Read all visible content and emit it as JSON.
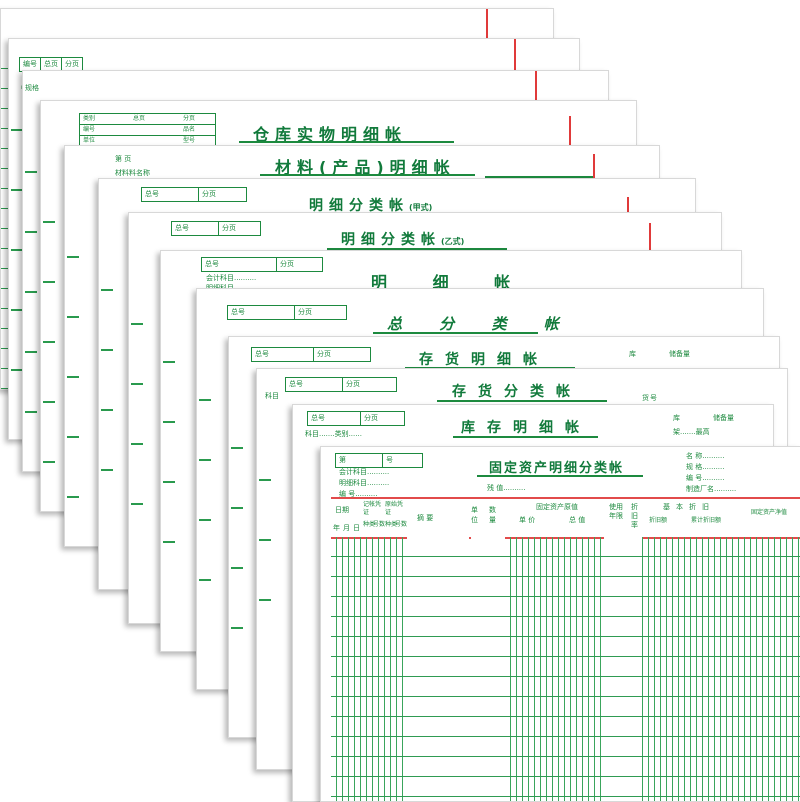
{
  "sheets": [
    {
      "title": ""
    },
    {
      "title": "",
      "box": [
        "编号",
        "总页",
        "分页"
      ],
      "hdr": "品名"
    },
    {
      "title": "",
      "hdr": "规格"
    },
    {
      "title": "仓库实物明细帐",
      "boxrows": [
        [
          "类别",
          "总页",
          "分页"
        ],
        [
          "编号",
          "品名"
        ],
        [
          "单位",
          "型号"
        ],
        [
          "计划"
        ]
      ]
    },
    {
      "title": "材料(产品)明细帐",
      "hdr": "第   页",
      "hdr2": "材料料名称"
    },
    {
      "title": "明细分类帐",
      "suffix": "(甲式)",
      "box": [
        "总号",
        "分页"
      ]
    },
    {
      "title": "明细分类帐",
      "suffix": "(乙式)",
      "box": [
        "总号",
        "分页"
      ]
    },
    {
      "title": "明 细 帐",
      "box": [
        "总号",
        "分页"
      ],
      "hdr": "会计科目..........",
      "hdr2": "明细科目"
    },
    {
      "title": "总 分 类 帐",
      "box": [
        "总号",
        "分页"
      ]
    },
    {
      "title": "存货明细帐",
      "box": [
        "总号",
        "分页"
      ],
      "right1": "库",
      "right2": "储备量"
    },
    {
      "title": "存货分类帐",
      "box": [
        "总号",
        "分页"
      ],
      "hdr": "科目",
      "right1": "货号"
    },
    {
      "title": "库存明细帐",
      "box": [
        "总号",
        "分页"
      ],
      "hdr": "科目.......类别......",
      "right1": "库",
      "right2": "储备量",
      "right3": "架.......最高"
    },
    {
      "title": "固定资产明细分类帐",
      "box": [
        "第",
        "号"
      ],
      "hdr_lines": [
        "会计科目..........",
        "明细科目..........",
        "编    号.........."
      ],
      "right_lines": [
        "名    称..........",
        "规    格..........",
        "编    号..........",
        "制造厂名.........."
      ],
      "value_line": "残        值..........",
      "columns": {
        "date": "日期",
        "date_sub": [
          "年",
          "月",
          "日"
        ],
        "voucher1": "记帐凭证",
        "voucher1_sub": [
          "种类",
          "号数"
        ],
        "voucher2": "原始凭证",
        "voucher2_sub": [
          "种类",
          "号数"
        ],
        "summary": "摘    要",
        "unit": "单位",
        "qty": "数量",
        "original": "固定资产原值",
        "orig_sub": [
          "单  价",
          "总  值"
        ],
        "life": "使用年限",
        "rate": "折旧率",
        "depr": "基本折旧",
        "depr_sub": [
          "折旧额",
          "累计折旧额"
        ],
        "net": "固定资产净值"
      }
    }
  ]
}
